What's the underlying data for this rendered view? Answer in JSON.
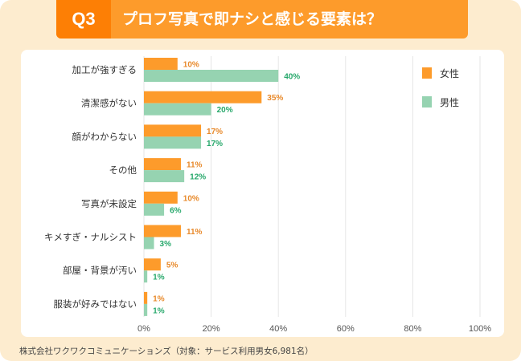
{
  "header": {
    "q": "Q3",
    "title": "プロフ写真で即ナシと感じる要素は？"
  },
  "source": "株式会社ワクワクコミュニケーションズ（対象：サービス利用男女6,981名）",
  "colors": {
    "female": "#fd9b2b",
    "male": "#96d3b1",
    "female_label": "#e8892a",
    "male_label": "#27a86b"
  },
  "chart_data": {
    "type": "bar",
    "orientation": "horizontal",
    "categories": [
      "加工が強すぎる",
      "清潔感がない",
      "顔がわからない",
      "その他",
      "写真が未設定",
      "キメすぎ・ナルシスト",
      "部屋・背景が汚い",
      "服装が好みではない"
    ],
    "series": [
      {
        "name": "女性",
        "values": [
          10,
          35,
          17,
          11,
          10,
          11,
          5,
          1
        ]
      },
      {
        "name": "男性",
        "values": [
          40,
          20,
          17,
          12,
          6,
          3,
          1,
          1
        ]
      }
    ],
    "xlim": [
      0,
      100
    ],
    "xticks": [
      "0%",
      "20%",
      "40%",
      "60%",
      "80%",
      "100%"
    ],
    "grid": true,
    "legend": "top-right"
  }
}
